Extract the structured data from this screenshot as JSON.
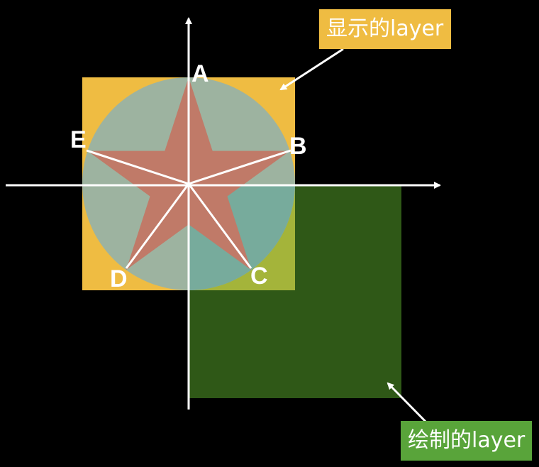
{
  "points": {
    "A": "A",
    "B": "B",
    "C": "C",
    "D": "D",
    "E": "E"
  },
  "callouts": {
    "display_layer": "显示的layer",
    "draw_layer": "绘制的layer"
  },
  "colors": {
    "background": "#000000",
    "display_layer_fill": "#efbc42",
    "draw_layer_fill": "#2f5817",
    "circle_fill": "#9db3a0",
    "circle_overlap_fill": "#77ab9c",
    "star_fill": "#c07a68",
    "overlap_square_fill": "#a4b43a",
    "axis_and_lines": "#ffffff",
    "display_label_bg": "#efbc42",
    "draw_label_bg": "#59a43a"
  }
}
